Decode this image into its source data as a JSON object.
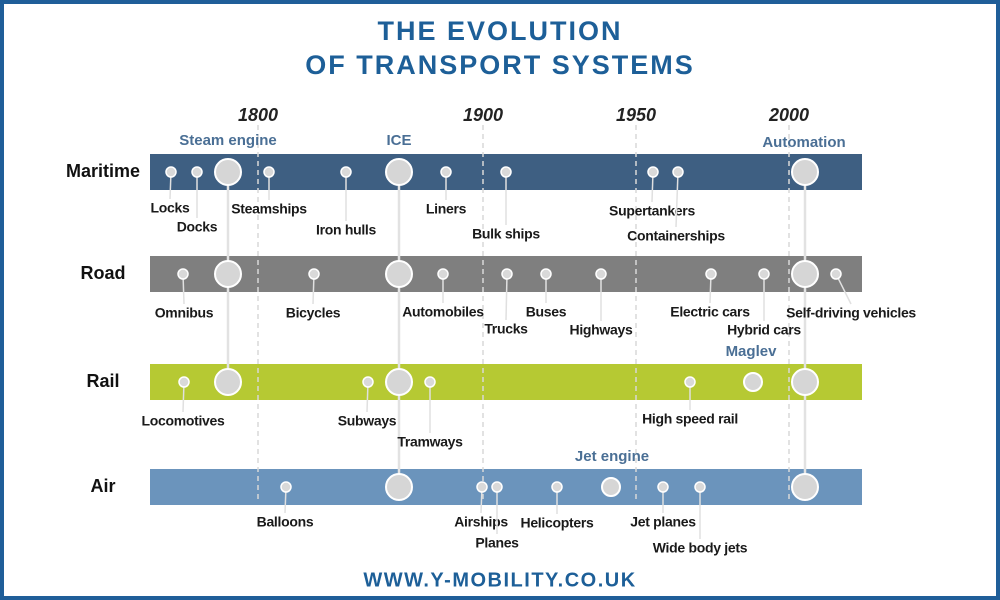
{
  "title": [
    "THE EVOLUTION",
    "OF TRANSPORT SYSTEMS"
  ],
  "years": [
    "1800",
    "1900",
    "1950",
    "2000"
  ],
  "innovations": [
    "Steam engine",
    "ICE",
    "Automation",
    "Maglev",
    "Jet engine"
  ],
  "rows": [
    {
      "label": "Maritime",
      "items": [
        "Locks",
        "Docks",
        "Steamships",
        "Iron hulls",
        "Liners",
        "Bulk ships",
        "Supertankers",
        "Containerships"
      ]
    },
    {
      "label": "Road",
      "items": [
        "Omnibus",
        "Bicycles",
        "Automobiles",
        "Trucks",
        "Buses",
        "Highways",
        "Electric cars",
        "Hybrid cars",
        "Self-driving vehicles"
      ]
    },
    {
      "label": "Rail",
      "items": [
        "Locomotives",
        "Subways",
        "Tramways",
        "High speed rail"
      ]
    },
    {
      "label": "Air",
      "items": [
        "Balloons",
        "Airships",
        "Planes",
        "Helicopters",
        "Jet planes",
        "Wide body jets"
      ]
    }
  ],
  "footer": "WWW.Y-MOBILITY.CO.UK"
}
